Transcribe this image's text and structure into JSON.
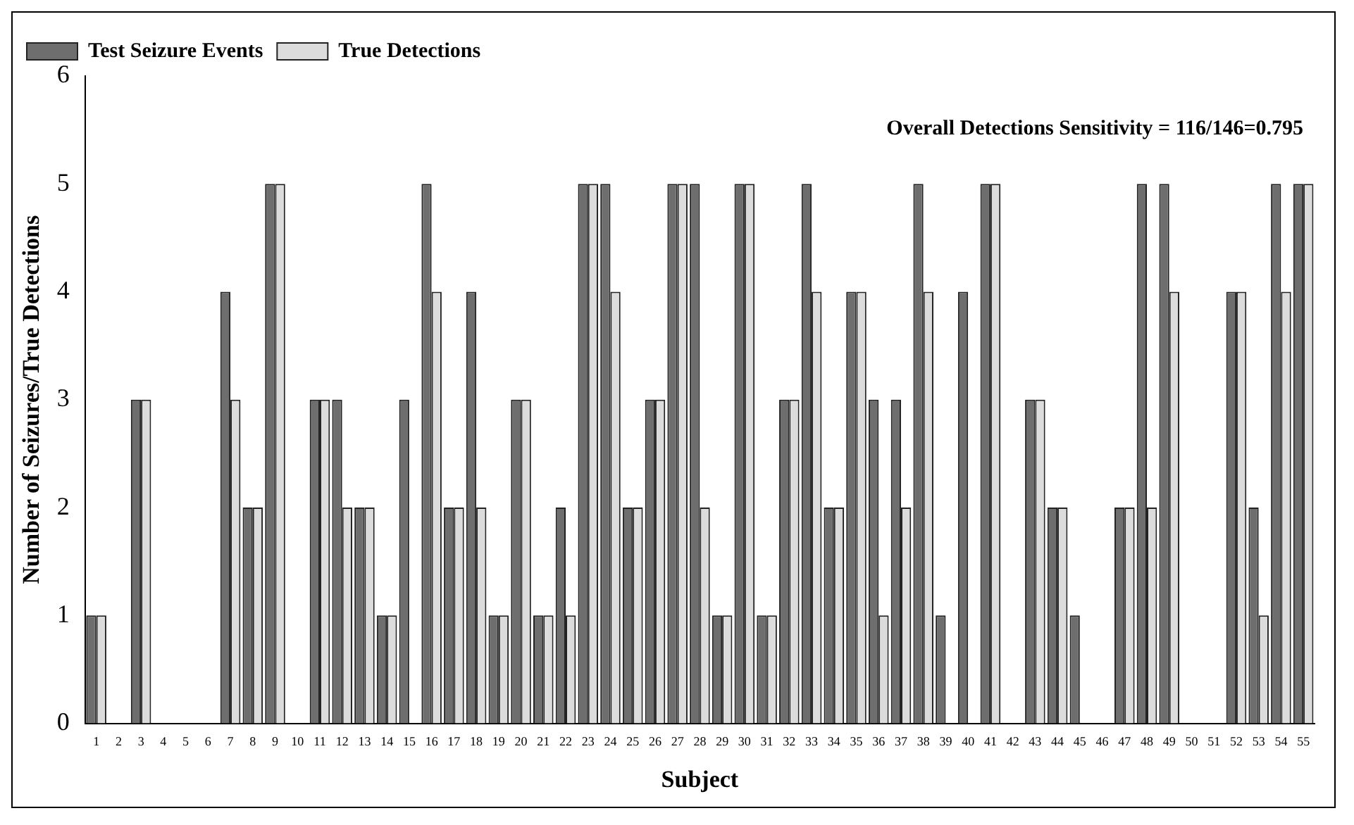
{
  "chart_data": {
    "type": "bar",
    "xlabel": "Subject",
    "ylabel": "Number of Seizures/True Detections",
    "x": [
      1,
      2,
      3,
      4,
      5,
      6,
      7,
      8,
      9,
      10,
      11,
      12,
      13,
      14,
      15,
      16,
      17,
      18,
      19,
      20,
      21,
      22,
      23,
      24,
      25,
      26,
      27,
      28,
      29,
      30,
      31,
      32,
      33,
      34,
      35,
      36,
      37,
      38,
      39,
      40,
      41,
      42,
      43,
      44,
      45,
      46,
      47,
      48,
      49,
      50,
      51,
      52,
      53,
      54,
      55
    ],
    "xlim": [
      0.5,
      55.5
    ],
    "xticks": [
      1,
      2,
      3,
      4,
      5,
      6,
      7,
      8,
      9,
      10,
      11,
      12,
      13,
      14,
      15,
      16,
      17,
      18,
      19,
      20,
      21,
      22,
      23,
      24,
      25,
      26,
      27,
      28,
      29,
      30,
      31,
      32,
      33,
      34,
      35,
      36,
      37,
      38,
      39,
      40,
      41,
      42,
      43,
      44,
      45,
      46,
      47,
      48,
      49,
      50,
      51,
      52,
      53,
      54,
      55
    ],
    "series": [
      {
        "name": "Test Seizure Events",
        "color": "#6e6e6e",
        "values": [
          1,
          0,
          3,
          0,
          0,
          0,
          4,
          2,
          5,
          0,
          3,
          3,
          2,
          1,
          3,
          5,
          2,
          4,
          1,
          3,
          1,
          2,
          5,
          5,
          2,
          3,
          5,
          5,
          1,
          5,
          1,
          3,
          5,
          2,
          4,
          3,
          3,
          5,
          1,
          4,
          5,
          0,
          3,
          2,
          1,
          0,
          2,
          5,
          5,
          0,
          0,
          4,
          2,
          5,
          5
        ]
      },
      {
        "name": "True Detections",
        "color": "#dcdcdc",
        "values": [
          1,
          0,
          3,
          0,
          0,
          0,
          3,
          2,
          5,
          0,
          3,
          2,
          2,
          1,
          0,
          4,
          2,
          2,
          1,
          3,
          1,
          1,
          5,
          4,
          2,
          3,
          5,
          2,
          1,
          5,
          1,
          3,
          4,
          2,
          4,
          1,
          2,
          4,
          0,
          0,
          5,
          0,
          3,
          2,
          0,
          0,
          2,
          2,
          4,
          0,
          0,
          4,
          1,
          4,
          5
        ]
      }
    ],
    "ylim": [
      0,
      6
    ],
    "yticks": [
      0,
      1,
      2,
      3,
      4,
      5,
      6
    ],
    "grid": false,
    "legend": "top left",
    "annotations": [
      "Overall Detections Sensitivity = 116/146=0.795"
    ]
  }
}
